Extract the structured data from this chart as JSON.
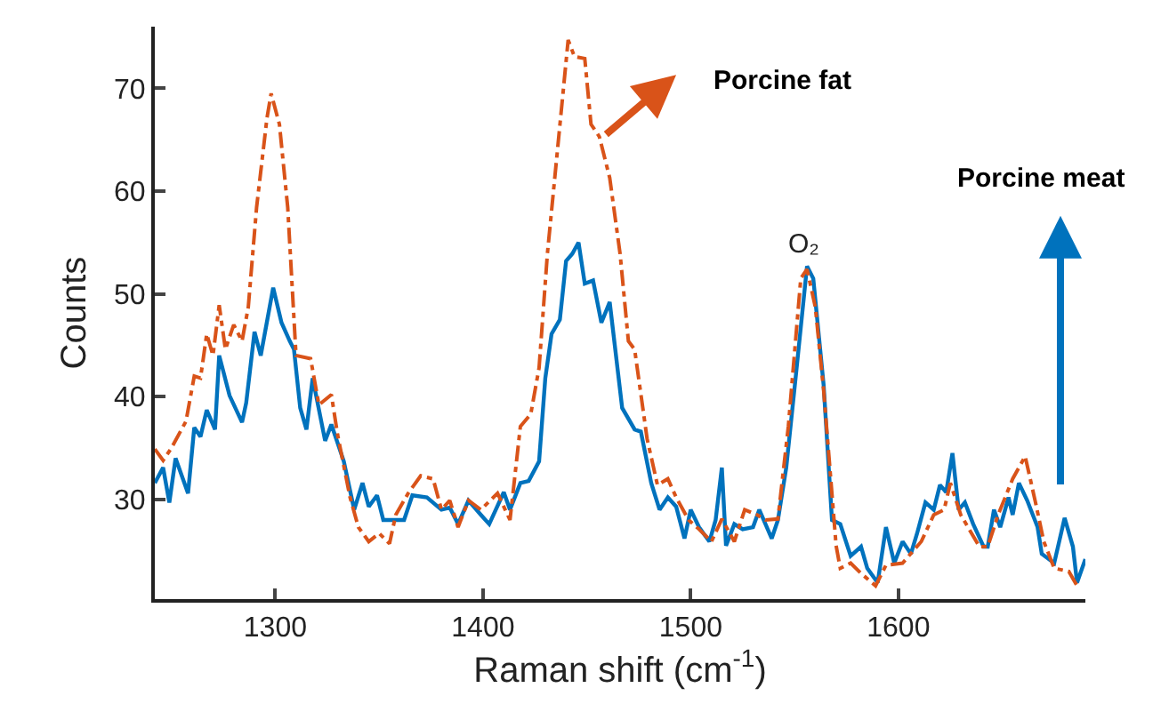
{
  "chart_data": {
    "type": "line",
    "xlabel": "Raman shift (cm$^{-1}$)",
    "ylabel": "Counts",
    "xlim": [
      1242,
      1690
    ],
    "xticks": [
      1300,
      1400,
      1500,
      1600
    ],
    "ylim": [
      20.3,
      76
    ],
    "yticks": [
      30,
      40,
      50,
      60,
      70
    ],
    "legend": "top right",
    "marker": "none",
    "annotations": [
      {
        "text": "O₂",
        "x": 1555,
        "y": 53
      }
    ],
    "series": [
      {
        "name": "Porcine meat",
        "color": "#0072bd",
        "line_style": "solid",
        "x": [
          1242,
          1246,
          1249,
          1252,
          1258,
          1261,
          1264,
          1267,
          1271,
          1273,
          1278,
          1284,
          1286,
          1290,
          1293,
          1299,
          1303,
          1307,
          1309,
          1312,
          1315,
          1318,
          1324,
          1327,
          1333,
          1338,
          1342,
          1345,
          1349,
          1352,
          1362,
          1366,
          1373,
          1380,
          1384,
          1388,
          1393,
          1399,
          1403,
          1410,
          1413,
          1418,
          1422,
          1427,
          1430,
          1433,
          1437,
          1440,
          1443,
          1446,
          1449,
          1453,
          1457,
          1461,
          1467,
          1473,
          1476,
          1481,
          1485,
          1489,
          1493,
          1497,
          1500,
          1504,
          1509,
          1512,
          1515,
          1517,
          1521,
          1525,
          1530,
          1533,
          1539,
          1542,
          1546,
          1551,
          1556,
          1559,
          1564,
          1568,
          1572,
          1577,
          1582,
          1585,
          1590,
          1594,
          1598,
          1602,
          1606,
          1609,
          1613,
          1617,
          1620,
          1623,
          1626,
          1629,
          1632,
          1636,
          1641,
          1643,
          1646,
          1649,
          1653,
          1655,
          1658,
          1662,
          1667,
          1669,
          1675,
          1680,
          1684,
          1686,
          1690
        ],
        "values": [
          31.6,
          33.1,
          29.7,
          34.0,
          30.6,
          37.0,
          36.1,
          38.7,
          36.8,
          44.0,
          40.1,
          37.5,
          39.4,
          46.3,
          44.0,
          50.6,
          47.2,
          45.4,
          44.6,
          38.9,
          36.8,
          41.8,
          35.7,
          37.3,
          33.7,
          29.0,
          31.6,
          29.3,
          30.4,
          28.0,
          28.0,
          30.4,
          30.2,
          29.0,
          29.2,
          27.6,
          29.9,
          28.5,
          27.6,
          30.7,
          29.0,
          31.6,
          31.8,
          33.7,
          41.8,
          46.1,
          47.5,
          53.2,
          53.9,
          55.0,
          51.0,
          51.3,
          47.2,
          49.2,
          38.9,
          36.8,
          36.6,
          31.6,
          29.0,
          30.2,
          29.3,
          26.2,
          29.0,
          27.3,
          25.9,
          28.0,
          33.1,
          25.5,
          27.6,
          27.1,
          27.3,
          29.0,
          26.2,
          28.0,
          33.1,
          42.8,
          52.7,
          51.5,
          41.1,
          28.0,
          27.6,
          24.5,
          25.4,
          23.3,
          21.9,
          27.3,
          23.8,
          25.9,
          24.7,
          26.7,
          29.7,
          29.0,
          31.4,
          30.7,
          34.5,
          29.0,
          29.7,
          27.6,
          25.4,
          25.4,
          29.0,
          27.3,
          30.2,
          28.5,
          31.6,
          29.9,
          27.3,
          24.7,
          23.8,
          28.2,
          25.4,
          21.9,
          24.2
        ]
      },
      {
        "name": "Porcine fat",
        "color": "#d95319",
        "line_style": "dashed",
        "x": [
          1242,
          1246,
          1250,
          1257,
          1261,
          1264,
          1267,
          1270,
          1273,
          1276,
          1280,
          1284,
          1287,
          1291,
          1296,
          1298,
          1302,
          1306,
          1310,
          1317,
          1321,
          1327,
          1330,
          1336,
          1340,
          1345,
          1350,
          1355,
          1358,
          1364,
          1370,
          1376,
          1380,
          1384,
          1388,
          1393,
          1399,
          1407,
          1413,
          1418,
          1423,
          1427,
          1431,
          1436,
          1441,
          1444,
          1449,
          1452,
          1456,
          1461,
          1466,
          1470,
          1473,
          1479,
          1484,
          1489,
          1493,
          1499,
          1504,
          1510,
          1515,
          1521,
          1526,
          1532,
          1536,
          1542,
          1547,
          1553,
          1556,
          1560,
          1564,
          1570,
          1572,
          1577,
          1582,
          1589,
          1594,
          1602,
          1611,
          1617,
          1622,
          1625,
          1630,
          1639,
          1643,
          1648,
          1655,
          1661,
          1666,
          1670,
          1675,
          1682,
          1686
        ],
        "values": [
          34.9,
          33.8,
          35.0,
          37.6,
          42.0,
          41.8,
          46.1,
          44.0,
          48.9,
          44.6,
          47.0,
          45.4,
          48.7,
          58.4,
          67.1,
          69.5,
          66.5,
          58.4,
          44.0,
          43.7,
          39.2,
          40.2,
          36.3,
          30.2,
          27.3,
          25.9,
          26.7,
          25.7,
          28.5,
          30.6,
          32.3,
          32.0,
          29.0,
          29.9,
          27.3,
          29.9,
          29.0,
          30.6,
          28.0,
          37.1,
          38.3,
          42.8,
          53.9,
          64.3,
          74.7,
          73.1,
          72.9,
          66.5,
          65.3,
          61.3,
          53.9,
          45.4,
          44.6,
          35.9,
          31.4,
          32.0,
          30.2,
          28.0,
          27.1,
          25.9,
          28.1,
          25.9,
          29.0,
          28.5,
          28.0,
          28.1,
          37.1,
          51.5,
          52.4,
          48.7,
          40.6,
          25.5,
          23.3,
          23.8,
          22.8,
          21.6,
          23.6,
          23.8,
          25.9,
          28.5,
          29.0,
          31.6,
          28.5,
          25.4,
          25.4,
          28.5,
          32.0,
          34.2,
          29.7,
          25.9,
          23.3,
          23.0,
          21.6
        ]
      }
    ]
  }
}
